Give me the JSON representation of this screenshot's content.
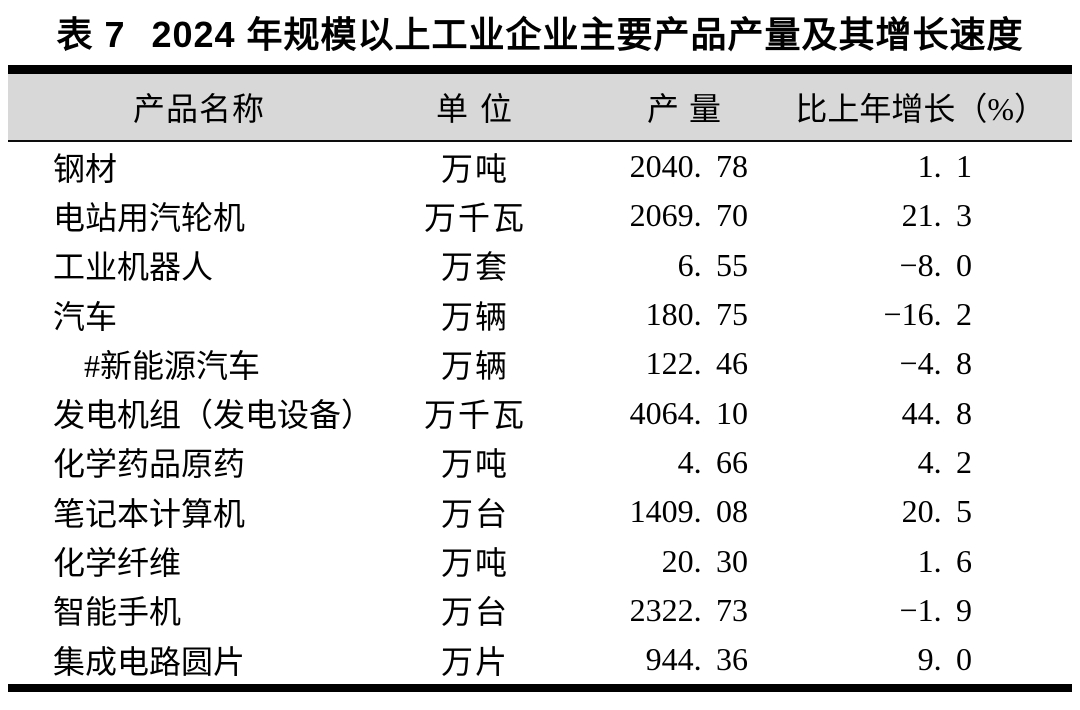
{
  "title": {
    "table_label": "表 7",
    "text": "2024 年规模以上工业企业主要产品产量及其增长速度"
  },
  "table": {
    "columns": {
      "product": "产品名称",
      "unit": "单 位",
      "output": "产 量",
      "growth": "比上年增长（%）"
    },
    "rows": [
      {
        "name": "钢材",
        "unit": "万吨",
        "output": "2040.78",
        "growth": "1.1"
      },
      {
        "name": "电站用汽轮机",
        "unit": "万千瓦",
        "output": "2069.70",
        "growth": "21.3"
      },
      {
        "name": "工业机器人",
        "unit": "万套",
        "output": "6.55",
        "growth": "-8.0"
      },
      {
        "name": "汽车",
        "unit": "万辆",
        "output": "180.75",
        "growth": "-16.2"
      },
      {
        "name": "#新能源汽车",
        "unit": "万辆",
        "output": "122.46",
        "growth": "-4.8"
      },
      {
        "name": "发电机组（发电设备）",
        "unit": "万千瓦",
        "output": "4064.10",
        "growth": "44.8"
      },
      {
        "name": "化学药品原药",
        "unit": "万吨",
        "output": "4.66",
        "growth": "4.2"
      },
      {
        "name": "笔记本计算机",
        "unit": "万台",
        "output": "1409.08",
        "growth": "20.5"
      },
      {
        "name": "化学纤维",
        "unit": "万吨",
        "output": "20.30",
        "growth": "1.6"
      },
      {
        "name": "智能手机",
        "unit": "万台",
        "output": "2322.73",
        "growth": "-1.9"
      },
      {
        "name": "集成电路圆片",
        "unit": "万片",
        "output": "944.36",
        "growth": "9.0"
      }
    ]
  },
  "colors": {
    "header_background": "#d8d8d8",
    "rule": "#000000",
    "text": "#000000"
  }
}
